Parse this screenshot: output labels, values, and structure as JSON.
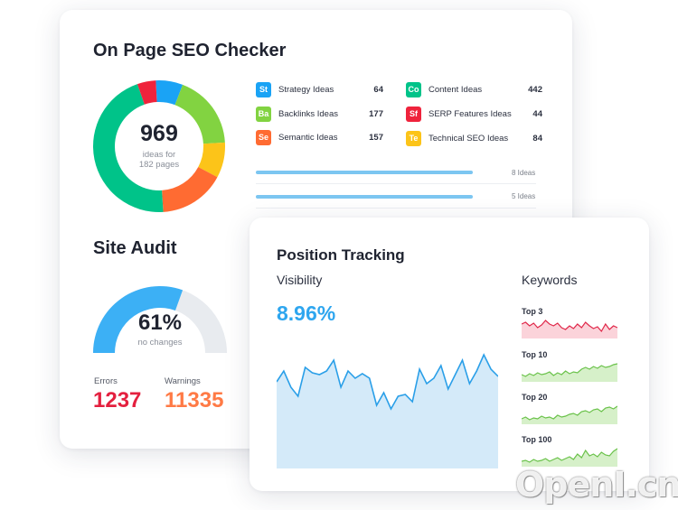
{
  "seo_checker": {
    "title": "On Page SEO Checker",
    "total": "969",
    "caption_line1": "ideas for",
    "caption_line2": "182 pages",
    "donut_colors": [
      "#00c389",
      "#ff6b32",
      "#fcc419",
      "#82d341",
      "#1aa3f5",
      "#ef233c"
    ],
    "ideas": [
      {
        "badge": "St",
        "label": "Strategy Ideas",
        "value": "64",
        "color": "#1aa3f5"
      },
      {
        "badge": "Co",
        "label": "Content Ideas",
        "value": "442",
        "color": "#00c389"
      },
      {
        "badge": "Ba",
        "label": "Backlinks Ideas",
        "value": "177",
        "color": "#82d341"
      },
      {
        "badge": "Sf",
        "label": "SERP Features Ideas",
        "value": "44",
        "color": "#ef233c"
      },
      {
        "badge": "Se",
        "label": "Semantic Ideas",
        "value": "157",
        "color": "#ff6b32"
      },
      {
        "badge": "Te",
        "label": "Technical SEO Ideas",
        "value": "84",
        "color": "#fcc419"
      }
    ],
    "bars": [
      {
        "label": "8 Ideas"
      },
      {
        "label": "5 Ideas"
      }
    ]
  },
  "site_audit": {
    "title": "Site Audit",
    "percent": "61%",
    "caption": "no changes",
    "gauge_fraction": 0.61,
    "errors_label": "Errors",
    "errors_value": "1237",
    "warnings_label": "Warnings",
    "warnings_value": "11335",
    "errors_color": "#e4203f",
    "warnings_color": "#ff7a45"
  },
  "position_tracking": {
    "title": "Position Tracking",
    "visibility_label": "Visibility",
    "visibility_value": "8.96%",
    "keywords_label": "Keywords",
    "keywords": [
      {
        "label": "Top 3",
        "color": "#e0284a",
        "fill": "#fbd3da"
      },
      {
        "label": "Top 10",
        "color": "#6ac24a",
        "fill": "#d6f0c9"
      },
      {
        "label": "Top 20",
        "color": "#6ac24a",
        "fill": "#d6f0c9"
      },
      {
        "label": "Top 100",
        "color": "#6ac24a",
        "fill": "#d6f0c9"
      }
    ]
  },
  "watermark": "OpenI.cn"
}
